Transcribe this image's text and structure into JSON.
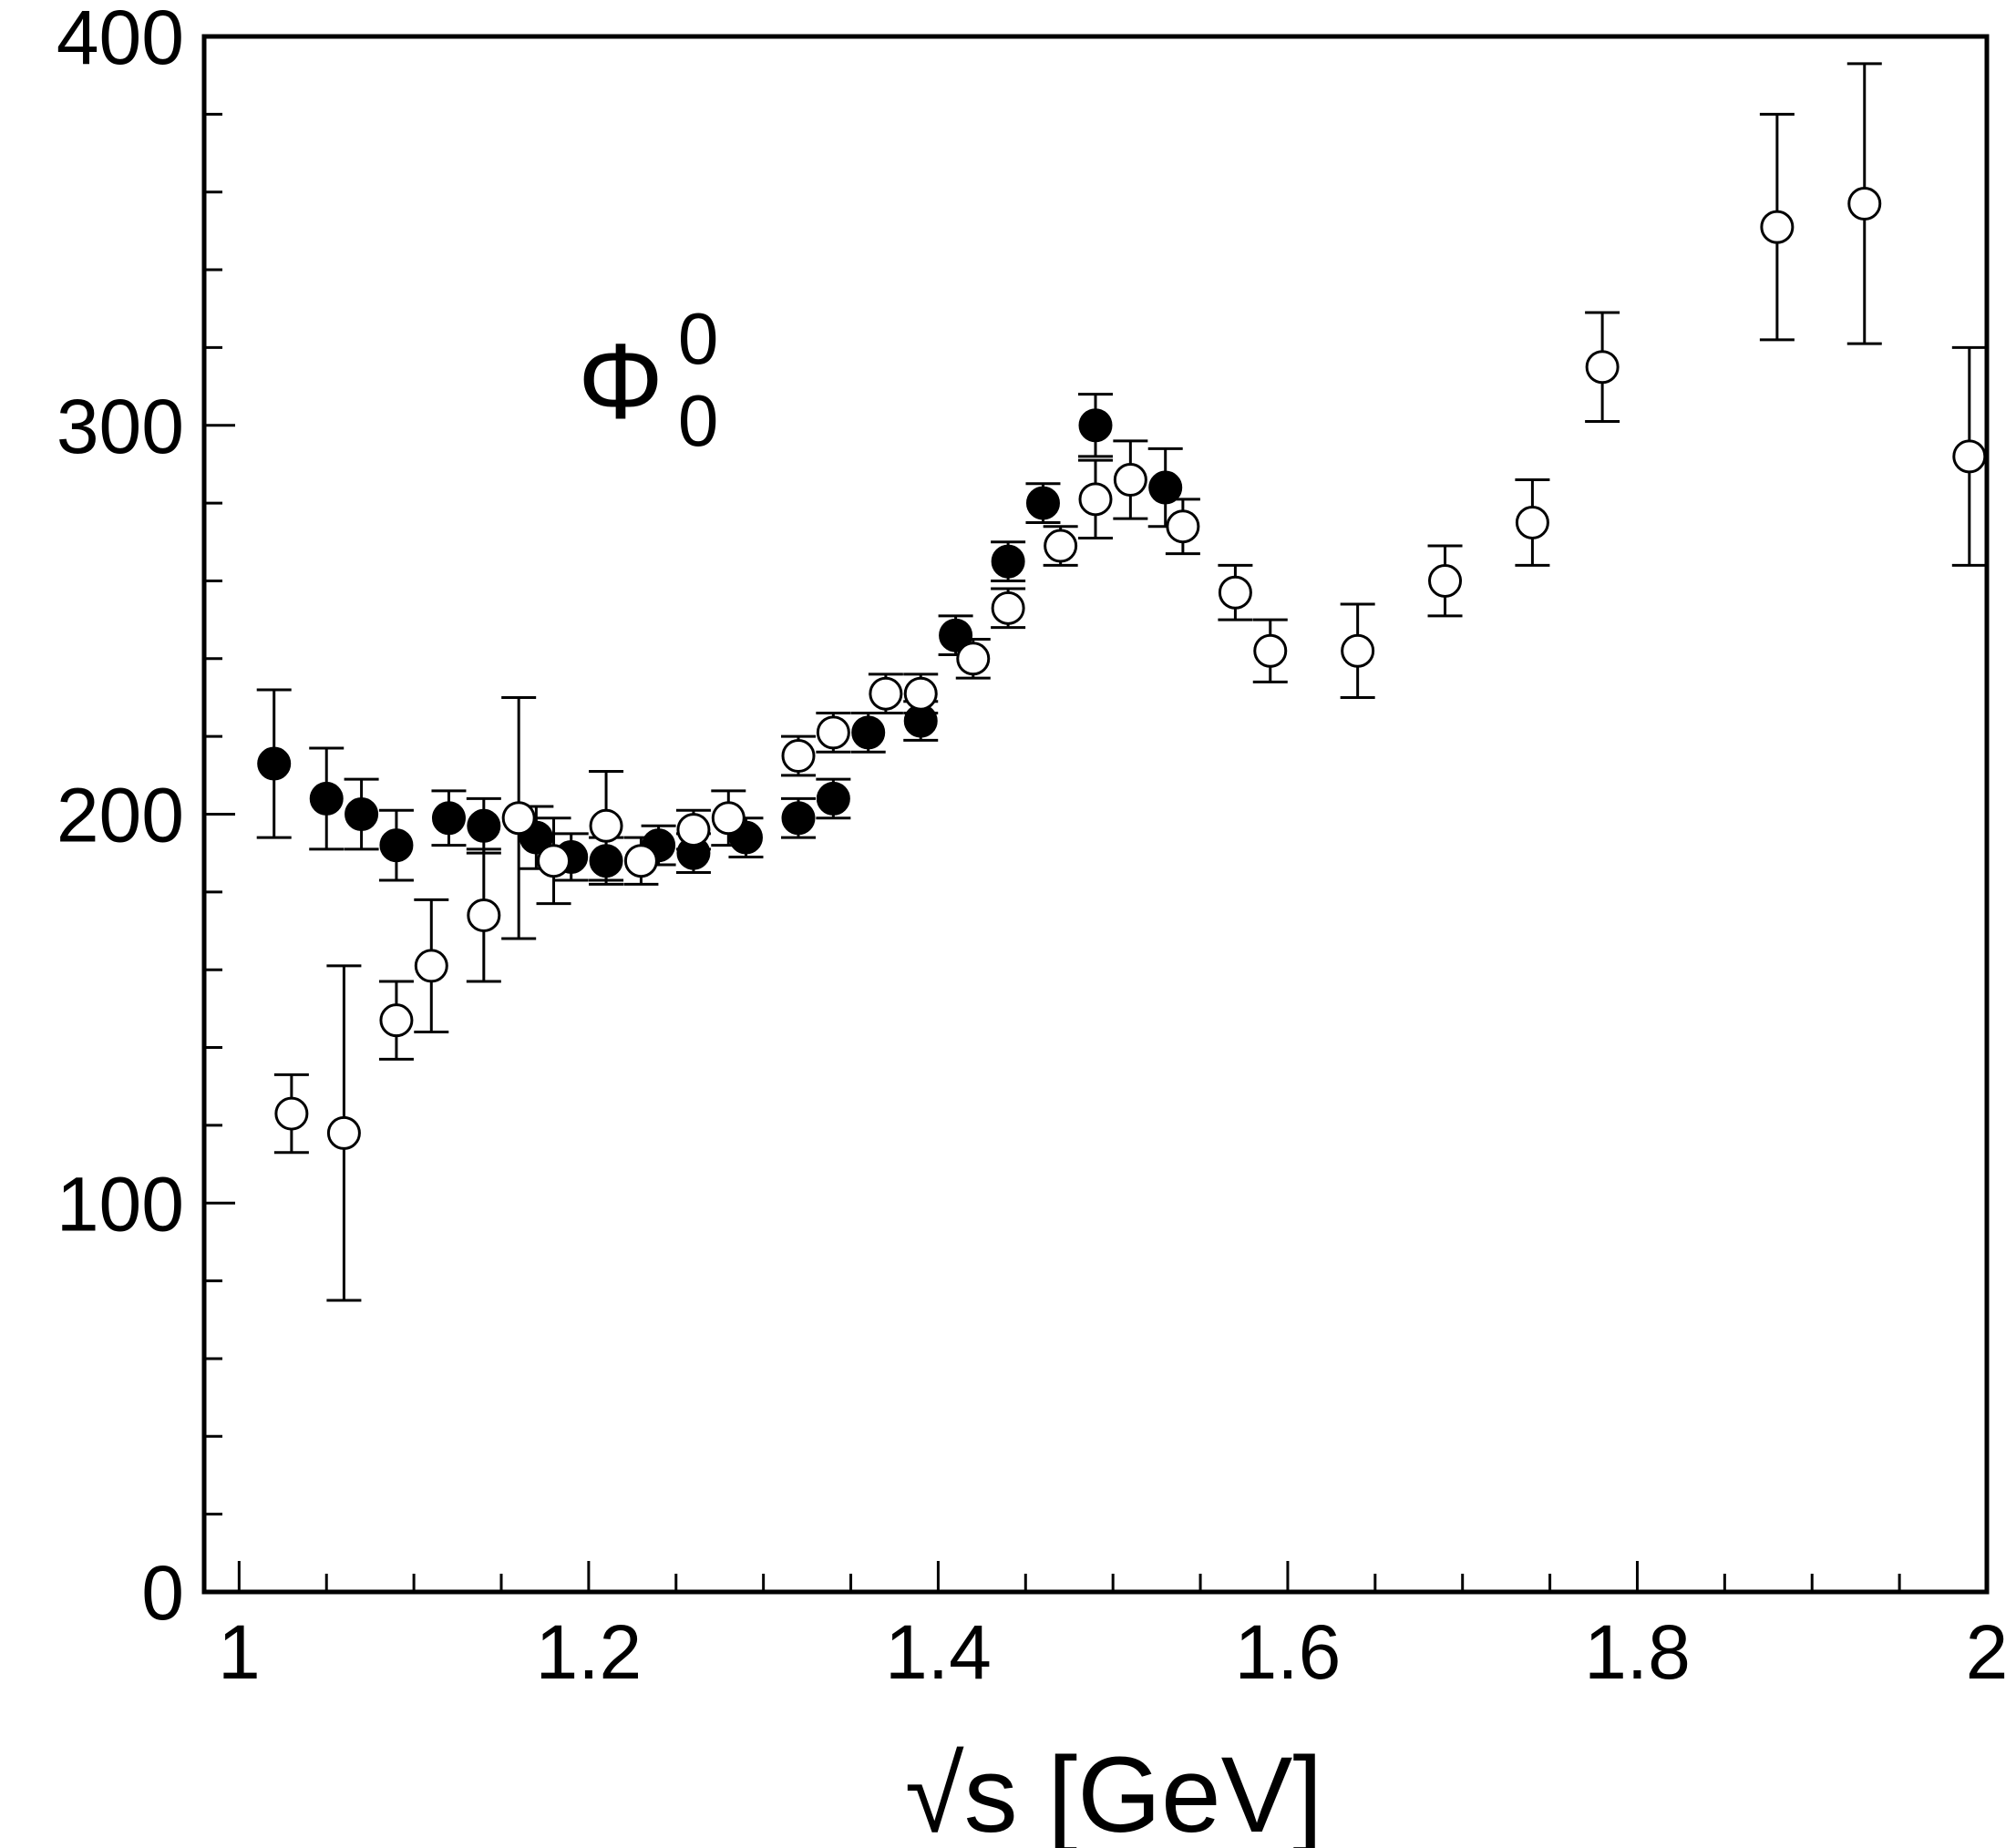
{
  "chart_data": {
    "type": "scatter",
    "title": "",
    "xlabel": "√s [GeV]",
    "ylabel": "",
    "xlim": [
      0.98,
      2.0
    ],
    "ylim": [
      0,
      400
    ],
    "x_ticks": [
      1,
      1.2,
      1.4,
      1.6,
      1.8,
      2
    ],
    "x_tick_labels": [
      "1",
      "1.2",
      "1.4",
      "1.6",
      "1.8",
      "2"
    ],
    "x_minor_step": 0.05,
    "y_ticks": [
      0,
      100,
      200,
      300,
      400
    ],
    "y_tick_labels": [
      "0",
      "100",
      "200",
      "300",
      "400"
    ],
    "y_minor_step": 20,
    "grid": false,
    "legend": "none",
    "annotation": {
      "main": "Φ",
      "sup": "0",
      "sub": "0",
      "x": 1.2,
      "y": 300
    },
    "series": [
      {
        "name": "filled",
        "marker": "filled-circle",
        "color": "#000000",
        "points": [
          {
            "x": 1.02,
            "y": 213,
            "err": 19
          },
          {
            "x": 1.05,
            "y": 204,
            "err": 13
          },
          {
            "x": 1.07,
            "y": 200,
            "err": 9
          },
          {
            "x": 1.09,
            "y": 192,
            "err": 9
          },
          {
            "x": 1.12,
            "y": 199,
            "err": 7
          },
          {
            "x": 1.14,
            "y": 197,
            "err": 7
          },
          {
            "x": 1.17,
            "y": 194,
            "err": 8
          },
          {
            "x": 1.19,
            "y": 189,
            "err": 6
          },
          {
            "x": 1.21,
            "y": 188,
            "err": 6
          },
          {
            "x": 1.24,
            "y": 192,
            "err": 5
          },
          {
            "x": 1.26,
            "y": 190,
            "err": 5
          },
          {
            "x": 1.29,
            "y": 194,
            "err": 5
          },
          {
            "x": 1.32,
            "y": 199,
            "err": 5
          },
          {
            "x": 1.34,
            "y": 204,
            "err": 5
          },
          {
            "x": 1.36,
            "y": 221,
            "err": 5
          },
          {
            "x": 1.39,
            "y": 224,
            "err": 5
          },
          {
            "x": 1.41,
            "y": 246,
            "err": 5
          },
          {
            "x": 1.44,
            "y": 265,
            "err": 5
          },
          {
            "x": 1.46,
            "y": 280,
            "err": 5
          },
          {
            "x": 1.49,
            "y": 300,
            "err": 8
          },
          {
            "x": 1.53,
            "y": 284,
            "err": 10
          }
        ]
      },
      {
        "name": "open",
        "marker": "open-circle",
        "color": "#000000",
        "points": [
          {
            "x": 1.03,
            "y": 123,
            "err": 10
          },
          {
            "x": 1.06,
            "y": 118,
            "err": 43
          },
          {
            "x": 1.09,
            "y": 147,
            "err": 10
          },
          {
            "x": 1.11,
            "y": 161,
            "err": 17
          },
          {
            "x": 1.14,
            "y": 174,
            "err": 17
          },
          {
            "x": 1.16,
            "y": 199,
            "err": 31
          },
          {
            "x": 1.18,
            "y": 188,
            "err": 11
          },
          {
            "x": 1.21,
            "y": 197,
            "err": 14
          },
          {
            "x": 1.23,
            "y": 188,
            "err": 6
          },
          {
            "x": 1.26,
            "y": 196,
            "err": 5
          },
          {
            "x": 1.28,
            "y": 199,
            "err": 7
          },
          {
            "x": 1.32,
            "y": 215,
            "err": 5
          },
          {
            "x": 1.34,
            "y": 221,
            "err": 5
          },
          {
            "x": 1.37,
            "y": 231,
            "err": 5
          },
          {
            "x": 1.39,
            "y": 231,
            "err": 5
          },
          {
            "x": 1.42,
            "y": 240,
            "err": 5
          },
          {
            "x": 1.44,
            "y": 253,
            "err": 5
          },
          {
            "x": 1.47,
            "y": 269,
            "err": 5
          },
          {
            "x": 1.49,
            "y": 281,
            "err": 10
          },
          {
            "x": 1.51,
            "y": 286,
            "err": 10
          },
          {
            "x": 1.54,
            "y": 274,
            "err": 7
          },
          {
            "x": 1.57,
            "y": 257,
            "err": 7
          },
          {
            "x": 1.59,
            "y": 242,
            "err": 8
          },
          {
            "x": 1.64,
            "y": 242,
            "err": 12
          },
          {
            "x": 1.69,
            "y": 260,
            "err": 9
          },
          {
            "x": 1.74,
            "y": 275,
            "err": 11
          },
          {
            "x": 1.78,
            "y": 315,
            "err": 14
          },
          {
            "x": 1.88,
            "y": 351,
            "err": 29
          },
          {
            "x": 1.93,
            "y": 357,
            "err": 36
          },
          {
            "x": 1.99,
            "y": 292,
            "err": 28
          }
        ]
      }
    ]
  }
}
